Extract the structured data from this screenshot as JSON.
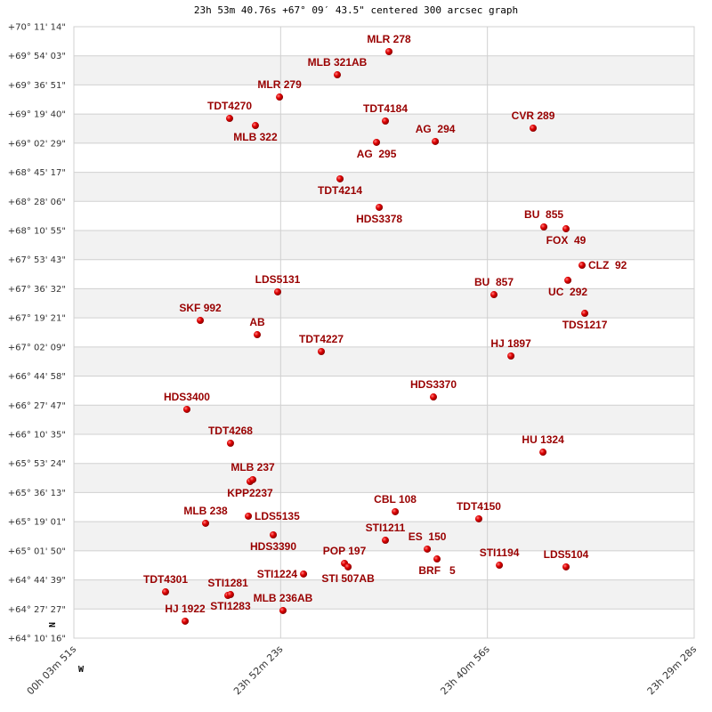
{
  "chart_data": {
    "type": "scatter",
    "title": "23h 53m 40.76s +67° 09′ 43.5\" centered 300 arcsec graph",
    "xlabel": "",
    "ylabel": "",
    "x_units": "right ascension (decimal hours)",
    "y_units": "declination (decimal degrees)",
    "xlim": [
      24.0642,
      23.4911
    ],
    "ylim": [
      64.1711,
      70.1872
    ],
    "x_reversed": true,
    "grid": true,
    "x_tick_labels": [
      "00h 03m 51s",
      "23h 52m 23s",
      "23h 40m 56s",
      "23h 29m 28s"
    ],
    "y_tick_labels": [
      "+70° 11' 14\"",
      "+69° 54' 03\"",
      "+69° 36' 51\"",
      "+69° 19' 40\"",
      "+69° 02' 29\"",
      "+68° 45' 17\"",
      "+68° 28' 06\"",
      "+68° 10' 55\"",
      "+67° 53' 43\"",
      "+67° 36' 32\"",
      "+67° 19' 21\"",
      "+67° 02' 09\"",
      "+66° 44' 58\"",
      "+66° 27' 47\"",
      "+66° 10' 35\"",
      "+65° 53' 24\"",
      "+65° 36' 13\"",
      "+65° 19' 01\"",
      "+65° 01' 50\"",
      "+64° 44' 39\"",
      "+64° 27' 27\"",
      "+64° 10' 16\""
    ],
    "compass": {
      "north": "N",
      "west": "W"
    },
    "colors": {
      "point": "#e00000",
      "label": "#990000",
      "band": "#f2f2f2",
      "grid": "#d0d0d0"
    },
    "points": [
      {
        "label": "MLR 278",
        "x": 23.7731,
        "y": 69.942
      },
      {
        "label": "MLB 321AB",
        "x": 23.8208,
        "y": 69.714
      },
      {
        "label": "MLR 279",
        "x": 23.8742,
        "y": 69.495
      },
      {
        "label": "TDT4270",
        "x": 23.9203,
        "y": 69.285
      },
      {
        "label": "MLB 322",
        "x": 23.8965,
        "y": 69.215
      },
      {
        "label": "TDT4184",
        "x": 23.7764,
        "y": 69.259
      },
      {
        "label": "AG  295",
        "x": 23.7846,
        "y": 69.049
      },
      {
        "label": "AG  294",
        "x": 23.7303,
        "y": 69.058
      },
      {
        "label": "CVR 289",
        "x": 23.6399,
        "y": 69.189
      },
      {
        "label": "TDT4214",
        "x": 23.8183,
        "y": 68.69
      },
      {
        "label": "HDS3378",
        "x": 23.7821,
        "y": 68.41
      },
      {
        "label": "BU  855",
        "x": 23.63,
        "y": 68.217
      },
      {
        "label": "FOX  49",
        "x": 23.6095,
        "y": 68.199
      },
      {
        "label": "CLZ  92",
        "x": 23.5947,
        "y": 67.84
      },
      {
        "label": "UC  292",
        "x": 23.6078,
        "y": 67.692
      },
      {
        "label": "LDS5131",
        "x": 23.8759,
        "y": 67.578
      },
      {
        "label": "BU  857",
        "x": 23.6761,
        "y": 67.551
      },
      {
        "label": "TDS1217",
        "x": 23.5922,
        "y": 67.367
      },
      {
        "label": "SKF 992",
        "x": 23.9474,
        "y": 67.297
      },
      {
        "label": "AB",
        "x": 23.8948,
        "y": 67.157
      },
      {
        "label": "TDT4227",
        "x": 23.8356,
        "y": 66.991
      },
      {
        "label": "HJ 1897",
        "x": 23.6604,
        "y": 66.947
      },
      {
        "label": "HDS3370",
        "x": 23.732,
        "y": 66.544
      },
      {
        "label": "HDS3400",
        "x": 23.9598,
        "y": 66.422
      },
      {
        "label": "TDT4268",
        "x": 23.9195,
        "y": 66.089
      },
      {
        "label": "HU 1324",
        "x": 23.6308,
        "y": 66.001
      },
      {
        "label": "KPP2237",
        "x": 23.9014,
        "y": 65.712
      },
      {
        "label": "MLB 237",
        "x": 23.8989,
        "y": 65.73
      },
      {
        "label": "LDS5135",
        "x": 23.903,
        "y": 65.371
      },
      {
        "label": "MLB 238",
        "x": 23.9425,
        "y": 65.301
      },
      {
        "label": "HDS3390",
        "x": 23.88,
        "y": 65.187
      },
      {
        "label": "CBL 108",
        "x": 23.7673,
        "y": 65.415
      },
      {
        "label": "TDT4150",
        "x": 23.6901,
        "y": 65.345
      },
      {
        "label": "STI1211",
        "x": 23.7764,
        "y": 65.134
      },
      {
        "label": "ES  150",
        "x": 23.7377,
        "y": 65.047
      },
      {
        "label": "BRF   5",
        "x": 23.7287,
        "y": 64.95
      },
      {
        "label": "POP 197",
        "x": 23.8142,
        "y": 64.907
      },
      {
        "label": "STI 507AB",
        "x": 23.8109,
        "y": 64.872
      },
      {
        "label": "STI1224",
        "x": 23.852,
        "y": 64.802
      },
      {
        "label": "STI1194",
        "x": 23.6711,
        "y": 64.889
      },
      {
        "label": "LDS5104",
        "x": 23.6095,
        "y": 64.872
      },
      {
        "label": "TDT4301",
        "x": 23.9795,
        "y": 64.626
      },
      {
        "label": "STI1281",
        "x": 23.9219,
        "y": 64.591
      },
      {
        "label": "STI1283",
        "x": 23.9195,
        "y": 64.6
      },
      {
        "label": "MLB 236AB",
        "x": 23.871,
        "y": 64.443
      },
      {
        "label": "HJ 1922",
        "x": 23.9614,
        "y": 64.338
      }
    ]
  }
}
